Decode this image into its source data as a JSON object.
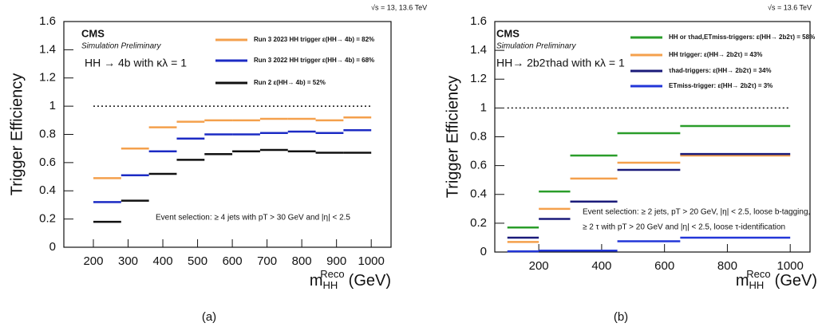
{
  "chart_data": [
    {
      "type": "histogram",
      "ylabel": "Trigger Efficiency",
      "xlabel": {
        "base": "m",
        "sub": "HH",
        "sup": "Reco",
        "unit": "(GeV)"
      },
      "annotations": [
        "CMS",
        "Simulation Preliminary",
        "HH → 4b with κλ = 1",
        "Event selection: ≥ 4 jets with pT > 30 GeV and |η| < 2.5",
        "√s = 13, 13.6 TeV",
        "(a)"
      ],
      "bins": [
        200,
        280,
        360,
        440,
        520,
        600,
        680,
        760,
        840,
        920,
        1000
      ],
      "series": [
        {
          "name": "Run 3 2023 HH trigger  ε(HH→ 4b) = 82%",
          "color": "#f4a04c",
          "values": [
            0.49,
            0.7,
            0.85,
            0.89,
            0.9,
            0.9,
            0.91,
            0.91,
            0.9,
            0.92
          ]
        },
        {
          "name": "Run 3 2022 HH trigger  ε(HH→ 4b) = 68%",
          "color": "#1c2bc4",
          "values": [
            0.32,
            0.51,
            0.68,
            0.77,
            0.8,
            0.8,
            0.81,
            0.82,
            0.81,
            0.83
          ]
        },
        {
          "name": "Run 2  ε(HH→ 4b) = 52%",
          "color": "#111111",
          "values": [
            0.18,
            0.33,
            0.52,
            0.62,
            0.66,
            0.68,
            0.69,
            0.68,
            0.67,
            0.67
          ]
        }
      ],
      "hline": 1,
      "xlim": [
        115,
        1057
      ],
      "ylim": [
        0,
        1.6
      ],
      "xticks": [
        200,
        300,
        400,
        500,
        600,
        700,
        800,
        900,
        1000
      ],
      "yticks": [
        0,
        0.2,
        0.4,
        0.6,
        0.8,
        1,
        1.2,
        1.4,
        1.6
      ]
    },
    {
      "type": "histogram",
      "ylabel": "Trigger Efficiency",
      "xlabel": {
        "base": "m",
        "sub": "HH",
        "sup": "Reco",
        "unit": "(GeV)"
      },
      "annotations": [
        "CMS",
        "Simulation Preliminary",
        "HH→ 2b2τhad with κλ = 1",
        "Event selection: ≥ 2 jets, pT > 20 GeV, |η| < 2.5,  loose b-tagging,",
        "≥ 2 τ with pT > 20 GeV and |η| < 2.5, loose τ-identification",
        "√s = 13.6 TeV",
        "(b)"
      ],
      "bins": [
        100,
        200,
        300,
        450,
        650,
        1000
      ],
      "series": [
        {
          "name": "HH or τhad,ETmiss-triggers: ε(HH→ 2b2τ) = 58%",
          "color": "#2a9d2a",
          "values": [
            0.17,
            0.42,
            0.67,
            0.825,
            0.875
          ]
        },
        {
          "name": "HH trigger: ε(HH→ 2b2τ) = 43%",
          "color": "#f4a04c",
          "values": [
            0.07,
            0.3,
            0.51,
            0.62,
            0.67
          ]
        },
        {
          "name": "τhad-triggers: ε(HH→ 2b2τ) = 34%",
          "color": "#1a1a7a",
          "values": [
            0.1,
            0.23,
            0.35,
            0.57,
            0.68
          ]
        },
        {
          "name": "ETmiss-trigger: ε(HH→ 2b2τ) = 3%",
          "color": "#2236d8",
          "values": [
            0.005,
            0.01,
            0.01,
            0.075,
            0.1
          ]
        }
      ],
      "hline": 1,
      "xlim": [
        60,
        1063
      ],
      "ylim": [
        0,
        1.6
      ],
      "xticks": [
        200,
        400,
        600,
        800,
        1000
      ],
      "yticks": [
        0,
        0.2,
        0.4,
        0.6,
        0.8,
        1,
        1.2,
        1.4,
        1.6
      ]
    }
  ]
}
